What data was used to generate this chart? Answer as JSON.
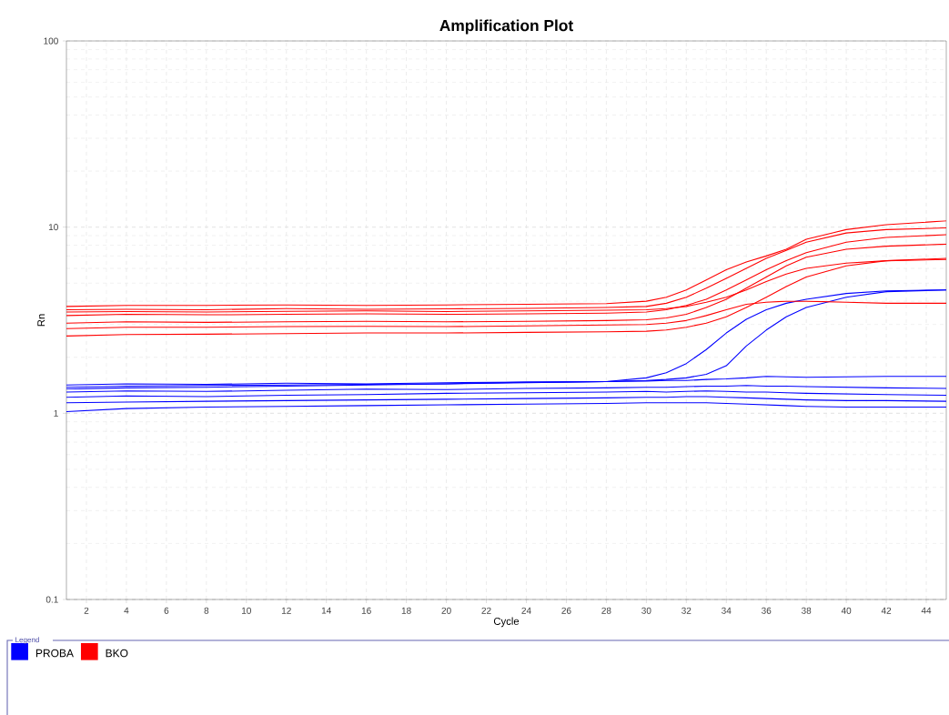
{
  "chart_data": {
    "type": "line",
    "title": "Amplification Plot",
    "xlabel": "Cycle",
    "ylabel": "Rn",
    "legend_title": "Legend",
    "x": [
      1,
      4,
      8,
      12,
      16,
      20,
      24,
      28,
      30,
      31,
      32,
      33,
      34,
      35,
      36,
      37,
      38,
      40,
      42,
      45
    ],
    "series": [
      {
        "name": "PROBA",
        "color": "#0000ff",
        "values": [
          1.42,
          1.44,
          1.43,
          1.45,
          1.44,
          1.46,
          1.47,
          1.48,
          1.55,
          1.65,
          1.85,
          2.2,
          2.7,
          3.2,
          3.6,
          3.9,
          4.1,
          4.4,
          4.55,
          4.6
        ]
      },
      {
        "color": "#0000ff",
        "values": [
          1.38,
          1.4,
          1.41,
          1.42,
          1.43,
          1.44,
          1.46,
          1.48,
          1.5,
          1.52,
          1.55,
          1.62,
          1.8,
          2.3,
          2.8,
          3.3,
          3.7,
          4.2,
          4.5,
          4.6
        ]
      },
      {
        "color": "#0000ff",
        "values": [
          1.35,
          1.37,
          1.38,
          1.4,
          1.42,
          1.44,
          1.47,
          1.48,
          1.49,
          1.5,
          1.5,
          1.52,
          1.53,
          1.55,
          1.58,
          1.57,
          1.56,
          1.57,
          1.58,
          1.58
        ]
      },
      {
        "color": "#0000ff",
        "values": [
          1.3,
          1.32,
          1.31,
          1.33,
          1.35,
          1.34,
          1.36,
          1.37,
          1.38,
          1.38,
          1.39,
          1.4,
          1.4,
          1.41,
          1.4,
          1.4,
          1.39,
          1.38,
          1.37,
          1.36
        ]
      },
      {
        "color": "#0000ff",
        "values": [
          1.22,
          1.24,
          1.23,
          1.25,
          1.26,
          1.28,
          1.29,
          1.3,
          1.31,
          1.3,
          1.31,
          1.32,
          1.31,
          1.3,
          1.3,
          1.29,
          1.28,
          1.27,
          1.26,
          1.25
        ]
      },
      {
        "color": "#0000ff",
        "values": [
          1.14,
          1.15,
          1.16,
          1.17,
          1.18,
          1.19,
          1.2,
          1.21,
          1.22,
          1.22,
          1.23,
          1.23,
          1.22,
          1.21,
          1.2,
          1.19,
          1.18,
          1.17,
          1.17,
          1.16
        ]
      },
      {
        "color": "#0000ff",
        "values": [
          1.02,
          1.06,
          1.08,
          1.09,
          1.1,
          1.11,
          1.12,
          1.13,
          1.14,
          1.14,
          1.14,
          1.14,
          1.13,
          1.12,
          1.11,
          1.1,
          1.09,
          1.08,
          1.08,
          1.08
        ]
      },
      {
        "name": "BKO",
        "color": "#ff0000",
        "values": [
          3.75,
          3.8,
          3.8,
          3.82,
          3.8,
          3.82,
          3.85,
          3.88,
          4.0,
          4.2,
          4.6,
          5.2,
          5.9,
          6.5,
          7.0,
          7.6,
          8.6,
          9.7,
          10.3,
          10.8
        ]
      },
      {
        "color": "#ff0000",
        "values": [
          3.6,
          3.62,
          3.6,
          3.65,
          3.62,
          3.64,
          3.66,
          3.7,
          3.75,
          3.9,
          4.2,
          4.7,
          5.3,
          6.0,
          6.8,
          7.5,
          8.3,
          9.3,
          9.7,
          9.9
        ]
      },
      {
        "color": "#ff0000",
        "values": [
          3.35,
          3.4,
          3.38,
          3.4,
          3.42,
          3.4,
          3.42,
          3.45,
          3.5,
          3.6,
          3.8,
          4.1,
          4.6,
          5.2,
          5.9,
          6.6,
          7.3,
          8.3,
          8.8,
          9.1
        ]
      },
      {
        "color": "#ff0000",
        "values": [
          3.5,
          3.52,
          3.5,
          3.53,
          3.55,
          3.52,
          3.55,
          3.58,
          3.6,
          3.65,
          3.75,
          3.95,
          4.2,
          4.6,
          5.1,
          5.6,
          6.0,
          6.4,
          6.6,
          6.7
        ]
      },
      {
        "color": "#ff0000",
        "values": [
          3.05,
          3.1,
          3.08,
          3.1,
          3.12,
          3.1,
          3.12,
          3.15,
          3.18,
          3.25,
          3.4,
          3.7,
          4.1,
          4.7,
          5.4,
          6.2,
          6.9,
          7.6,
          7.9,
          8.1
        ]
      },
      {
        "color": "#ff0000",
        "values": [
          2.85,
          2.9,
          2.9,
          2.92,
          2.93,
          2.92,
          2.95,
          2.98,
          3.0,
          3.05,
          3.15,
          3.35,
          3.6,
          3.85,
          3.95,
          4.0,
          4.0,
          3.95,
          3.9,
          3.9
        ]
      },
      {
        "color": "#ff0000",
        "values": [
          2.6,
          2.65,
          2.66,
          2.68,
          2.7,
          2.7,
          2.72,
          2.74,
          2.76,
          2.8,
          2.9,
          3.05,
          3.3,
          3.7,
          4.2,
          4.8,
          5.4,
          6.2,
          6.6,
          6.8
        ]
      }
    ],
    "xlim": [
      1,
      45
    ],
    "xticks": [
      2,
      4,
      6,
      8,
      10,
      12,
      14,
      16,
      18,
      20,
      22,
      24,
      26,
      28,
      30,
      32,
      34,
      36,
      38,
      40,
      42,
      44
    ],
    "ylim": [
      0.1,
      100
    ],
    "yticks": [
      0.1,
      1,
      10,
      100
    ],
    "log": true,
    "grid": true,
    "legend": "bottom"
  }
}
